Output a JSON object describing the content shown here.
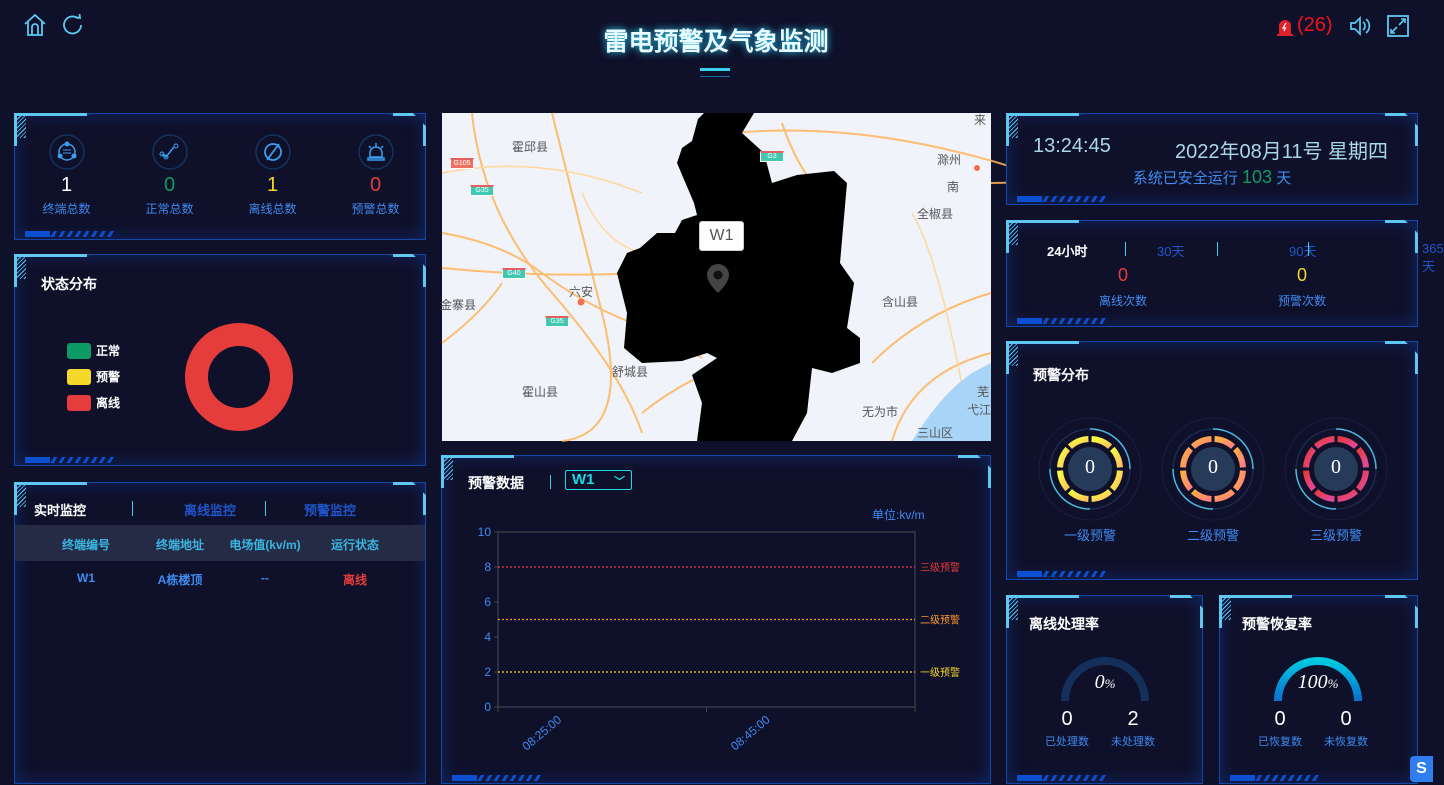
{
  "header": {
    "title": "雷电预警及气象监测",
    "alarm_count": "(26)",
    "icons": [
      "home-icon",
      "refresh-icon",
      "alarm-bell-icon",
      "speaker-icon",
      "fullscreen-icon"
    ]
  },
  "totals": [
    {
      "value": "1",
      "label": "终端总数",
      "color": "#ffffff",
      "icon": "terminal-icon"
    },
    {
      "value": "0",
      "label": "正常总数",
      "color": "#0e9a63",
      "icon": "line-chart-icon"
    },
    {
      "value": "1",
      "label": "离线总数",
      "color": "#f5d92a",
      "icon": "offline-icon"
    },
    {
      "value": "0",
      "label": "预警总数",
      "color": "#e53c3c",
      "icon": "siren-icon"
    }
  ],
  "status": {
    "title": "状态分布",
    "legend": [
      {
        "label": "正常",
        "color": "#0e9a63"
      },
      {
        "label": "预警",
        "color": "#f5d92a"
      },
      {
        "label": "离线",
        "color": "#e53c3c"
      }
    ],
    "values": [
      0,
      0,
      1
    ]
  },
  "monitor": {
    "tabs": [
      "实时监控",
      "离线监控",
      "预警监控"
    ],
    "active_tab": 0,
    "columns": [
      "终端编号",
      "终端地址",
      "电场值(kv/m)",
      "运行状态"
    ],
    "rows": [
      [
        "W1",
        "A栋楼顶",
        "--",
        "离线"
      ]
    ]
  },
  "map": {
    "marker_label": "W1",
    "places": [
      "霍邱县",
      "六安",
      "金寨县",
      "霍山县",
      "舒城县",
      "滁州",
      "南",
      "全椒县",
      "含山县",
      "无为市",
      "弋江",
      "三山区",
      "来",
      "芜"
    ],
    "roads": [
      "G105",
      "G35",
      "G40",
      "G35",
      "G3"
    ]
  },
  "chart_panel": {
    "title": "预警数据",
    "select_value": "W1",
    "unit": "单位:kv/m"
  },
  "chart_data": {
    "type": "line",
    "categories": [
      "08:25:00",
      "08:45:00"
    ],
    "series": [],
    "ylim": [
      0,
      10
    ],
    "yticks": [
      0,
      2,
      4,
      6,
      8,
      10
    ],
    "thresholds": [
      {
        "name": "三级预警",
        "value": 8,
        "color": "#e53c3c"
      },
      {
        "name": "二级预警",
        "value": 5,
        "color": "#ff9a2e"
      },
      {
        "name": "一级预警",
        "value": 2,
        "color": "#f5d92a"
      }
    ]
  },
  "clock": {
    "time": "13:24:45",
    "date": "2022年08月11号 星期四",
    "run_prefix": "系统已安全运行",
    "run_days": "103",
    "run_suffix": "天"
  },
  "period": {
    "tabs": [
      "24小时",
      "30天",
      "90天",
      "365天"
    ],
    "active_tab": 0,
    "offline_count": "0",
    "offline_label": "离线次数",
    "warn_count": "0",
    "warn_label": "预警次数"
  },
  "warn_dist": {
    "title": "预警分布",
    "items": [
      {
        "value": "0",
        "label": "一级预警"
      },
      {
        "value": "0",
        "label": "二级预警"
      },
      {
        "value": "0",
        "label": "三级预警"
      }
    ]
  },
  "offline_rate": {
    "title": "离线处理率",
    "percent": 0,
    "percent_text": "0",
    "handled": "0",
    "handled_label": "已处理数",
    "unhandled": "2",
    "unhandled_label": "未处理数"
  },
  "recover_rate": {
    "title": "预警恢复率",
    "percent": 100,
    "percent_text": "100",
    "recovered": "0",
    "recovered_label": "已恢复数",
    "unrecovered": "0",
    "unrecovered_label": "未恢复数"
  }
}
